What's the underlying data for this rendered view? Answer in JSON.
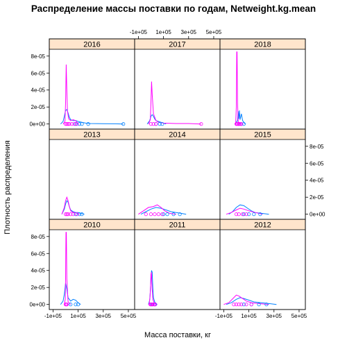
{
  "chart_data": {
    "type": "line",
    "title": "Распределение массы поставки по годам, Netweight.kg.mean",
    "xlabel": "Масса поставки, кг",
    "ylabel": "Плотность распределения",
    "x_ticks": [
      "-1e+05",
      "1e+05",
      "3e+05",
      "5e+05"
    ],
    "x_tick_values": [
      -100000,
      100000,
      300000,
      500000
    ],
    "y_ticks": [
      "0e+00",
      "2e-05",
      "4e-05",
      "6e-05",
      "8e-05"
    ],
    "y_tick_values": [
      0,
      2e-05,
      4e-05,
      6e-05,
      8e-05
    ],
    "xlim": [
      -130000,
      550000
    ],
    "ylim": [
      -6e-06,
      8.8e-05
    ],
    "layout": {
      "columns": 3,
      "rows": 3
    },
    "series_colors": {
      "blue": "#0080ff",
      "magenta": "#ff00ff"
    },
    "strip_color": "#ffe5cc",
    "panels": [
      {
        "year": "2016",
        "series": [
          {
            "color": "blue",
            "x": [
              -40000,
              -20000,
              -10000,
              0,
              10000,
              20000,
              30000,
              40000,
              60000,
              80000,
              100000,
              130000,
              160000,
              200000,
              300000,
              400000,
              460000
            ],
            "y": [
              0,
              3e-06,
              9e-06,
              1.6e-05,
              1.7e-05,
              1.3e-05,
              8e-06,
              5e-06,
              4e-06,
              4e-06,
              3e-06,
              2e-06,
              1e-06,
              5e-07,
              3e-07,
              2e-07,
              0
            ]
          },
          {
            "color": "magenta",
            "x": [
              -20000,
              -5000,
              0,
              5000,
              10000,
              15000,
              25000,
              40000,
              60000,
              80000,
              100000
            ],
            "y": [
              0,
              3e-06,
              2.5e-05,
              7e-05,
              4e-05,
              1.5e-05,
              6e-06,
              4e-06,
              5e-06,
              4e-06,
              0
            ]
          }
        ],
        "points_blue": [
          80000,
          110000,
          130000,
          180000,
          460000
        ],
        "points_magenta": [
          0,
          10000,
          20000,
          30000,
          50000,
          70000,
          90000
        ]
      },
      {
        "year": "2017",
        "series": [
          {
            "color": "blue",
            "x": [
              -30000,
              -10000,
              0,
              10000,
              20000,
              30000,
              40000,
              60000,
              80000,
              100000,
              120000
            ],
            "y": [
              0,
              4e-06,
              9e-06,
              1.1e-05,
              9e-06,
              6e-06,
              4e-06,
              3e-06,
              2e-06,
              1e-06,
              0
            ]
          },
          {
            "color": "magenta",
            "x": [
              -20000,
              -5000,
              0,
              5000,
              10000,
              20000,
              40000,
              60000,
              100000,
              200000,
              300000,
              400000
            ],
            "y": [
              0,
              5e-06,
              2.5e-05,
              5e-05,
              3.5e-05,
              1.2e-05,
              4e-06,
              2e-06,
              1e-06,
              5e-07,
              5e-07,
              0
            ]
          }
        ],
        "points_blue": [
          40000,
          70000,
          90000
        ],
        "points_magenta": [
          0,
          20000,
          40000,
          400000
        ]
      },
      {
        "year": "2018",
        "series": [
          {
            "color": "blue",
            "x": [
              -10000,
              0,
              10000,
              15000,
              20000,
              25000,
              30000,
              40000,
              50000,
              60000,
              70000
            ],
            "y": [
              0,
              2e-06,
              4e-06,
              1.5e-05,
              6e-06,
              1.6e-05,
              5e-06,
              1.2e-05,
              4e-06,
              2e-06,
              0
            ]
          },
          {
            "color": "magenta",
            "x": [
              -5000,
              0,
              3000,
              6000,
              10000,
              15000,
              25000,
              40000
            ],
            "y": [
              0,
              2e-05,
              8.5e-05,
              8.5e-05,
              2.5e-05,
              3e-06,
              1e-06,
              0
            ]
          }
        ],
        "points_blue": [
          20000,
          40000,
          60000
        ],
        "points_magenta": [
          0,
          5000,
          10000,
          20000,
          30000,
          40000
        ]
      },
      {
        "year": "2013",
        "series": [
          {
            "color": "blue",
            "x": [
              -30000,
              -10000,
              0,
              10000,
              20000,
              30000,
              40000,
              60000,
              80000,
              100000,
              120000,
              150000
            ],
            "y": [
              0,
              6e-06,
              1.2e-05,
              1.6e-05,
              1.4e-05,
              9e-06,
              5e-06,
              3e-06,
              2e-06,
              2e-06,
              1e-06,
              0
            ]
          },
          {
            "color": "magenta",
            "x": [
              -30000,
              -10000,
              0,
              10000,
              20000,
              30000,
              40000,
              60000,
              80000,
              110000
            ],
            "y": [
              0,
              8e-06,
              1.6e-05,
              2e-05,
              1.6e-05,
              9e-06,
              4e-06,
              2e-06,
              2e-06,
              0
            ]
          }
        ],
        "points_blue": [
          80000,
          110000,
          130000
        ],
        "points_magenta": [
          0,
          10000,
          20000,
          40000,
          60000,
          90000
        ]
      },
      {
        "year": "2014",
        "series": [
          {
            "color": "blue",
            "x": [
              -80000,
              -40000,
              0,
              40000,
              80000,
              120000,
              160000,
              200000,
              240000,
              280000
            ],
            "y": [
              0,
              3e-06,
              6e-06,
              8e-06,
              7e-06,
              5e-06,
              3e-06,
              2e-06,
              1e-06,
              0
            ]
          },
          {
            "color": "magenta",
            "x": [
              -100000,
              -60000,
              -20000,
              20000,
              50000,
              80000,
              110000,
              150000,
              200000
            ],
            "y": [
              0,
              4e-06,
              8e-06,
              9e-06,
              1.1e-05,
              8e-06,
              4e-06,
              1e-06,
              0
            ]
          }
        ],
        "points_blue": [
          100000,
          130000,
          180000,
          230000
        ],
        "points_magenta": [
          -40000,
          0,
          30000,
          60000,
          90000
        ]
      },
      {
        "year": "2015",
        "series": [
          {
            "color": "blue",
            "x": [
              -60000,
              -30000,
              0,
              30000,
              60000,
              90000,
              120000,
              150000,
              200000,
              260000
            ],
            "y": [
              0,
              3e-06,
              8e-06,
              1.1e-05,
              1e-05,
              7e-06,
              4e-06,
              2e-06,
              1e-06,
              0
            ]
          },
          {
            "color": "magenta",
            "x": [
              -80000,
              -40000,
              0,
              30000,
              60000,
              100000,
              150000,
              210000
            ],
            "y": [
              0,
              2e-06,
              5e-06,
              7e-06,
              6e-06,
              4e-06,
              2e-06,
              0
            ]
          }
        ],
        "points_blue": [
          60000,
          100000,
          140000,
          190000
        ],
        "points_magenta": [
          0,
          20000,
          50000,
          80000
        ]
      },
      {
        "year": "2010",
        "series": [
          {
            "color": "blue",
            "x": [
              -40000,
              -20000,
              -10000,
              0,
              10000,
              20000,
              40000,
              60000,
              80000,
              100000,
              120000
            ],
            "y": [
              0,
              4e-06,
              1.2e-05,
              2.5e-05,
              1.8e-05,
              8e-06,
              4e-06,
              6e-06,
              5e-06,
              2e-06,
              0
            ]
          },
          {
            "color": "magenta",
            "x": [
              -10000,
              -3000,
              0,
              3000,
              6000,
              10000,
              20000,
              40000
            ],
            "y": [
              0,
              6e-06,
              3e-05,
              8.5e-05,
              8.5e-05,
              3e-05,
              3e-06,
              0
            ]
          }
        ],
        "points_blue": [
          40000,
          80000,
          100000
        ],
        "points_magenta": [
          0,
          5000,
          10000
        ]
      },
      {
        "year": "2011",
        "series": [
          {
            "color": "blue",
            "x": [
              -20000,
              -10000,
              -5000,
              0,
              5000,
              10000,
              15000,
              20000,
              30000,
              40000,
              50000
            ],
            "y": [
              0,
              5e-06,
              1.5e-05,
              3.2e-05,
              4e-05,
              3.8e-05,
              2e-05,
              8e-06,
              3e-06,
              1e-06,
              0
            ]
          },
          {
            "color": "magenta",
            "x": [
              -15000,
              -8000,
              -3000,
              0,
              3000,
              8000,
              15000,
              25000,
              40000
            ],
            "y": [
              0,
              8e-06,
              2.2e-05,
              3.5e-05,
              3.8e-05,
              2.2e-05,
              6e-06,
              2e-06,
              0
            ]
          }
        ],
        "points_blue": [
          10000,
          30000
        ],
        "points_magenta": [
          -5000,
          0,
          5000,
          15000,
          25000,
          35000
        ]
      },
      {
        "year": "2012",
        "series": [
          {
            "color": "blue",
            "x": [
              -80000,
              -40000,
              0,
              30000,
              60000,
              100000,
              140000,
              200000,
              260000,
              320000
            ],
            "y": [
              0,
              2e-06,
              6e-06,
              8e-06,
              7e-06,
              5e-06,
              3e-06,
              2e-06,
              1e-06,
              0
            ]
          },
          {
            "color": "magenta",
            "x": [
              -100000,
              -60000,
              -20000,
              0,
              20000,
              40000,
              80000,
              120000,
              180000,
              260000
            ],
            "y": [
              0,
              2e-06,
              8e-06,
              1.1e-05,
              1e-05,
              8e-06,
              4e-06,
              2e-06,
              1e-06,
              0
            ]
          }
        ],
        "points_blue": [
          60000,
          120000,
          180000,
          240000
        ],
        "points_magenta": [
          -20000,
          0,
          20000,
          40000,
          80000,
          120000
        ]
      }
    ]
  }
}
